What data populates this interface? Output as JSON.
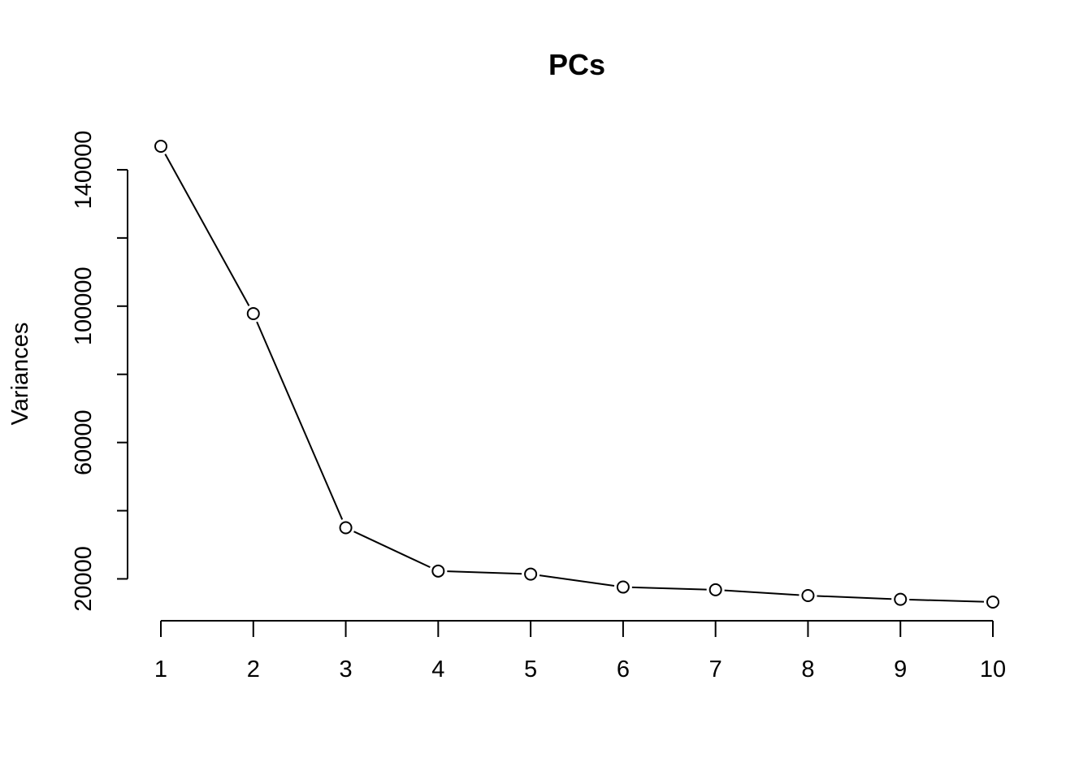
{
  "chart_data": {
    "type": "line",
    "title": "PCs",
    "xlabel": "",
    "ylabel": "Variances",
    "x": [
      1,
      2,
      3,
      4,
      5,
      6,
      7,
      8,
      9,
      10
    ],
    "x_tick_labels": [
      "1",
      "2",
      "3",
      "4",
      "5",
      "6",
      "7",
      "8",
      "9",
      "10"
    ],
    "series": [
      {
        "values": [
          146900,
          97800,
          35000,
          22300,
          21400,
          17600,
          16800,
          15100,
          14000,
          13200
        ]
      }
    ],
    "y_ticks": [
      20000,
      40000,
      60000,
      80000,
      100000,
      120000,
      140000
    ],
    "y_tick_labels": [
      "20000",
      "",
      "60000",
      "",
      "100000",
      "",
      "140000"
    ],
    "ylim": [
      12000,
      148000
    ],
    "grid": false,
    "marker": "open-circle"
  }
}
